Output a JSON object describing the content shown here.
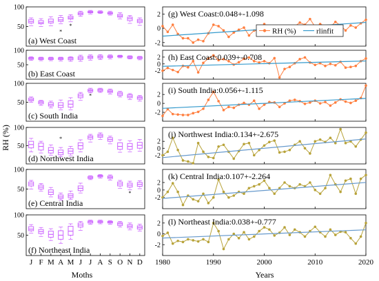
{
  "figure": {
    "left_ylabel": "RH (%)",
    "left_xlabel": "Moths",
    "right_xlabel": "Years",
    "months": [
      "J",
      "F",
      "M",
      "A",
      "M",
      "J",
      "J",
      "A",
      "S",
      "O",
      "N",
      "D"
    ],
    "year_ticks": [
      "1980",
      "1990",
      "2000",
      "2010",
      "2020"
    ],
    "box_ticks": [
      "50",
      "100"
    ],
    "ts_ticks": [
      "-2",
      "0",
      "2"
    ],
    "legend": {
      "obs": "RH (%)",
      "fit": "rlinfit"
    }
  },
  "chart_data": [
    {
      "type": "box",
      "label": "(a) West Coast",
      "ylim": [
        0,
        100
      ],
      "color": "#cc66ff",
      "boxes": [
        {
          "q1": 59,
          "med": 63,
          "q3": 68,
          "lo": 52,
          "hi": 72,
          "out": []
        },
        {
          "q1": 57,
          "med": 60,
          "q3": 65,
          "lo": 50,
          "hi": 70,
          "out": []
        },
        {
          "q1": 59,
          "med": 63,
          "q3": 69,
          "lo": 52,
          "hi": 75,
          "out": []
        },
        {
          "q1": 63,
          "med": 67,
          "q3": 73,
          "lo": 57,
          "hi": 78,
          "out": [
            38
          ]
        },
        {
          "q1": 69,
          "med": 72,
          "q3": 76,
          "lo": 62,
          "hi": 80,
          "out": [
            53
          ]
        },
        {
          "q1": 80,
          "med": 83,
          "q3": 86,
          "lo": 76,
          "hi": 89,
          "out": []
        },
        {
          "q1": 85,
          "med": 87,
          "q3": 89,
          "lo": 82,
          "hi": 91,
          "out": []
        },
        {
          "q1": 85,
          "med": 87,
          "q3": 88,
          "lo": 83,
          "hi": 90,
          "out": []
        },
        {
          "q1": 82,
          "med": 84,
          "q3": 86,
          "lo": 79,
          "hi": 89,
          "out": []
        },
        {
          "q1": 74,
          "med": 77,
          "q3": 81,
          "lo": 69,
          "hi": 85,
          "out": []
        },
        {
          "q1": 65,
          "med": 70,
          "q3": 74,
          "lo": 58,
          "hi": 78,
          "out": []
        },
        {
          "q1": 60,
          "med": 64,
          "q3": 68,
          "lo": 53,
          "hi": 72,
          "out": []
        }
      ]
    },
    {
      "type": "box",
      "label": "(b) East Coast",
      "ylim": [
        0,
        100
      ],
      "color": "#cc66ff",
      "boxes": [
        {
          "q1": 69,
          "med": 72,
          "q3": 75,
          "lo": 65,
          "hi": 78,
          "out": []
        },
        {
          "q1": 68,
          "med": 71,
          "q3": 74,
          "lo": 64,
          "hi": 76,
          "out": []
        },
        {
          "q1": 68,
          "med": 71,
          "q3": 74,
          "lo": 64,
          "hi": 76,
          "out": []
        },
        {
          "q1": 68,
          "med": 71,
          "q3": 74,
          "lo": 63,
          "hi": 76,
          "out": []
        },
        {
          "q1": 67,
          "med": 71,
          "q3": 75,
          "lo": 62,
          "hi": 78,
          "out": []
        },
        {
          "q1": 68,
          "med": 73,
          "q3": 78,
          "lo": 62,
          "hi": 83,
          "out": []
        },
        {
          "q1": 72,
          "med": 76,
          "q3": 80,
          "lo": 66,
          "hi": 84,
          "out": []
        },
        {
          "q1": 73,
          "med": 77,
          "q3": 81,
          "lo": 68,
          "hi": 85,
          "out": []
        },
        {
          "q1": 75,
          "med": 78,
          "q3": 81,
          "lo": 70,
          "hi": 84,
          "out": []
        },
        {
          "q1": 77,
          "med": 79,
          "q3": 81,
          "lo": 74,
          "hi": 83,
          "out": []
        },
        {
          "q1": 73,
          "med": 76,
          "q3": 79,
          "lo": 70,
          "hi": 81,
          "out": []
        },
        {
          "q1": 71,
          "med": 74,
          "q3": 77,
          "lo": 67,
          "hi": 79,
          "out": []
        }
      ]
    },
    {
      "type": "box",
      "label": "(c) South India",
      "ylim": [
        0,
        100
      ],
      "color": "#cc66ff",
      "boxes": [
        {
          "q1": 54,
          "med": 57,
          "q3": 61,
          "lo": 50,
          "hi": 64,
          "out": []
        },
        {
          "q1": 46,
          "med": 50,
          "q3": 53,
          "lo": 42,
          "hi": 55,
          "out": []
        },
        {
          "q1": 40,
          "med": 44,
          "q3": 49,
          "lo": 35,
          "hi": 53,
          "out": []
        },
        {
          "q1": 36,
          "med": 42,
          "q3": 49,
          "lo": 30,
          "hi": 56,
          "out": []
        },
        {
          "q1": 37,
          "med": 45,
          "q3": 54,
          "lo": 30,
          "hi": 62,
          "out": []
        },
        {
          "q1": 62,
          "med": 67,
          "q3": 72,
          "lo": 55,
          "hi": 76,
          "out": []
        },
        {
          "q1": 78,
          "med": 81,
          "q3": 84,
          "lo": 75,
          "hi": 87,
          "out": [
            68
          ]
        },
        {
          "q1": 79,
          "med": 82,
          "q3": 85,
          "lo": 76,
          "hi": 87,
          "out": []
        },
        {
          "q1": 76,
          "med": 79,
          "q3": 82,
          "lo": 72,
          "hi": 85,
          "out": []
        },
        {
          "q1": 68,
          "med": 72,
          "q3": 76,
          "lo": 64,
          "hi": 79,
          "out": []
        },
        {
          "q1": 62,
          "med": 66,
          "q3": 70,
          "lo": 57,
          "hi": 73,
          "out": []
        },
        {
          "q1": 58,
          "med": 62,
          "q3": 65,
          "lo": 53,
          "hi": 68,
          "out": []
        }
      ]
    },
    {
      "type": "box",
      "label": "(d) Northwest India",
      "ylim": [
        0,
        100
      ],
      "color": "#cc66ff",
      "boxes": [
        {
          "q1": 44,
          "med": 53,
          "q3": 62,
          "lo": 33,
          "hi": 70,
          "out": []
        },
        {
          "q1": 38,
          "med": 48,
          "q3": 57,
          "lo": 30,
          "hi": 62,
          "out": []
        },
        {
          "q1": 30,
          "med": 37,
          "q3": 45,
          "lo": 24,
          "hi": 52,
          "out": []
        },
        {
          "q1": 25,
          "med": 31,
          "q3": 38,
          "lo": 20,
          "hi": 45,
          "out": [
            70
          ]
        },
        {
          "q1": 28,
          "med": 35,
          "q3": 42,
          "lo": 22,
          "hi": 48,
          "out": []
        },
        {
          "q1": 41,
          "med": 50,
          "q3": 58,
          "lo": 33,
          "hi": 66,
          "out": []
        },
        {
          "q1": 68,
          "med": 73,
          "q3": 77,
          "lo": 60,
          "hi": 81,
          "out": []
        },
        {
          "q1": 73,
          "med": 77,
          "q3": 81,
          "lo": 67,
          "hi": 85,
          "out": []
        },
        {
          "q1": 62,
          "med": 67,
          "q3": 72,
          "lo": 55,
          "hi": 76,
          "out": []
        },
        {
          "q1": 40,
          "med": 48,
          "q3": 58,
          "lo": 32,
          "hi": 66,
          "out": []
        },
        {
          "q1": 40,
          "med": 48,
          "q3": 56,
          "lo": 33,
          "hi": 63,
          "out": []
        },
        {
          "q1": 43,
          "med": 51,
          "q3": 59,
          "lo": 35,
          "hi": 67,
          "out": []
        }
      ]
    },
    {
      "type": "box",
      "label": "(e) Central India",
      "ylim": [
        0,
        100
      ],
      "color": "#cc66ff",
      "boxes": [
        {
          "q1": 58,
          "med": 63,
          "q3": 68,
          "lo": 50,
          "hi": 72,
          "out": []
        },
        {
          "q1": 50,
          "med": 55,
          "q3": 60,
          "lo": 45,
          "hi": 64,
          "out": []
        },
        {
          "q1": 36,
          "med": 42,
          "q3": 48,
          "lo": 30,
          "hi": 54,
          "out": []
        },
        {
          "q1": 26,
          "med": 30,
          "q3": 35,
          "lo": 22,
          "hi": 40,
          "out": []
        },
        {
          "q1": 28,
          "med": 33,
          "q3": 38,
          "lo": 24,
          "hi": 45,
          "out": []
        },
        {
          "q1": 46,
          "med": 52,
          "q3": 58,
          "lo": 40,
          "hi": 65,
          "out": []
        },
        {
          "q1": 77,
          "med": 79,
          "q3": 82,
          "lo": 74,
          "hi": 84,
          "out": []
        },
        {
          "q1": 81,
          "med": 83,
          "q3": 85,
          "lo": 78,
          "hi": 87,
          "out": []
        },
        {
          "q1": 77,
          "med": 80,
          "q3": 83,
          "lo": 73,
          "hi": 86,
          "out": []
        },
        {
          "q1": 58,
          "med": 63,
          "q3": 68,
          "lo": 52,
          "hi": 72,
          "out": []
        },
        {
          "q1": 55,
          "med": 60,
          "q3": 65,
          "lo": 48,
          "hi": 70,
          "out": [
            40
          ]
        },
        {
          "q1": 57,
          "med": 62,
          "q3": 67,
          "lo": 51,
          "hi": 71,
          "out": []
        }
      ]
    },
    {
      "type": "box",
      "label": "(f) Northeast India",
      "ylim": [
        0,
        100
      ],
      "color": "#cc66ff",
      "boxes": [
        {
          "q1": 61,
          "med": 65,
          "q3": 71,
          "lo": 55,
          "hi": 76,
          "out": []
        },
        {
          "q1": 54,
          "med": 59,
          "q3": 64,
          "lo": 47,
          "hi": 69,
          "out": []
        },
        {
          "q1": 45,
          "med": 52,
          "q3": 60,
          "lo": 37,
          "hi": 66,
          "out": []
        },
        {
          "q1": 40,
          "med": 50,
          "q3": 61,
          "lo": 30,
          "hi": 70,
          "out": []
        },
        {
          "q1": 50,
          "med": 60,
          "q3": 72,
          "lo": 40,
          "hi": 78,
          "out": []
        },
        {
          "q1": 70,
          "med": 75,
          "q3": 80,
          "lo": 62,
          "hi": 84,
          "out": []
        },
        {
          "q1": 80,
          "med": 83,
          "q3": 85,
          "lo": 77,
          "hi": 87,
          "out": []
        },
        {
          "q1": 81,
          "med": 83,
          "q3": 85,
          "lo": 78,
          "hi": 87,
          "out": []
        },
        {
          "q1": 80,
          "med": 82,
          "q3": 84,
          "lo": 77,
          "hi": 86,
          "out": []
        },
        {
          "q1": 74,
          "med": 78,
          "q3": 81,
          "lo": 70,
          "hi": 84,
          "out": []
        },
        {
          "q1": 68,
          "med": 72,
          "q3": 76,
          "lo": 63,
          "hi": 80,
          "out": []
        },
        {
          "q1": 65,
          "med": 69,
          "q3": 73,
          "lo": 60,
          "hi": 77,
          "out": []
        }
      ]
    },
    {
      "type": "line",
      "label": "(g) West Coast:0.048+-1.098",
      "legend": true,
      "x_start": 1980,
      "xlim": [
        1980,
        2020
      ],
      "ylim": [
        -2.5,
        3
      ],
      "color": "#ff7f3f",
      "fit_color": "#3399cc",
      "values": [
        0.3,
        -0.5,
        0.5,
        -0.8,
        -1.4,
        -1.4,
        -2.0,
        -1.6,
        -1.8,
        -0.7,
        0.5,
        0.3,
        -0.3,
        -1.2,
        -0.6,
        -0.2,
        0.1,
        -1.0,
        -0.3,
        -0.4,
        0.6,
        0.0,
        -0.6,
        0.0,
        -0.8,
        0.1,
        0.3,
        0.8,
        0.5,
        1.3,
        0.2,
        0.6,
        0.3,
        0.2,
        0.9,
        0.4,
        -0.3,
        0.4,
        0.1,
        0.7,
        1.2
      ],
      "fit": [
        -1.098,
        0.822
      ]
    },
    {
      "type": "line",
      "label": "(h) East Coast:0.039+-0.708",
      "legend": false,
      "x_start": 1980,
      "xlim": [
        1980,
        2020
      ],
      "ylim": [
        -4.5,
        4
      ],
      "color": "#ff7f3f",
      "fit_color": "#3399cc",
      "values": [
        -2.0,
        -1.2,
        -1.8,
        -2.4,
        -0.6,
        -1.0,
        0.8,
        -2.5,
        0.3,
        1.6,
        2.5,
        1.1,
        1.4,
        0.8,
        -0.2,
        0.5,
        1.5,
        1.9,
        0.8,
        0.4,
        0.8,
        0.2,
        1.7,
        -4.0,
        -1.5,
        -0.9,
        0.2,
        1.4,
        1.9,
        0.4,
        -0.3,
        0.2,
        -0.6,
        0.0,
        -0.4,
        0.6,
        -1.1,
        -0.9,
        -0.6,
        0.8,
        1.6
      ],
      "fit": [
        -0.708,
        0.852
      ]
    },
    {
      "type": "line",
      "label": "(i) South India:0.056+-1.115",
      "legend": false,
      "x_start": 1980,
      "xlim": [
        1980,
        2020
      ],
      "ylim": [
        -4,
        4.5
      ],
      "color": "#ff7f3f",
      "fit_color": "#3399cc",
      "values": [
        -2.8,
        -1.3,
        -2.4,
        -2.5,
        -2.6,
        -2.6,
        -2.2,
        -1.9,
        -1.2,
        0.8,
        2.6,
        0.5,
        -1.5,
        -0.8,
        -1.0,
        -0.3,
        0.1,
        -0.3,
        0.6,
        -1.2,
        -0.3,
        0.3,
        0.2,
        -0.8,
        0.0,
        0.6,
        0.8,
        0.5,
        -0.1,
        0.2,
        0.6,
        0.0,
        0.3,
        -0.5,
        0.2,
        0.9,
        0.4,
        0.1,
        0.6,
        1.2,
        4.0
      ],
      "fit": [
        -1.115,
        1.125
      ]
    },
    {
      "type": "line",
      "label": "(j) Northwest India:0.134+-2.675",
      "legend": false,
      "x_start": 1980,
      "xlim": [
        1980,
        2020
      ],
      "ylim": [
        -4.5,
        6
      ],
      "color": "#b8a33a",
      "fit_color": "#6699cc",
      "values": [
        -2.0,
        -1.0,
        3.0,
        -0.5,
        -3.5,
        -3.8,
        -4.3,
        1.5,
        -1.0,
        -2.5,
        -2.8,
        0.5,
        1.0,
        -1.0,
        -3.0,
        -0.8,
        1.2,
        1.5,
        -2.0,
        -0.5,
        0.8,
        1.8,
        2.2,
        -1.2,
        -1.0,
        -0.5,
        1.0,
        2.0,
        0.0,
        -1.5,
        2.0,
        2.5,
        1.8,
        3.0,
        1.5,
        5.5,
        1.5,
        2.0,
        0.5,
        2.5,
        4.5
      ],
      "fit": [
        -2.675,
        2.685
      ]
    },
    {
      "type": "line",
      "label": "(k) Central India:0.107+-2.264",
      "legend": false,
      "x_start": 1980,
      "xlim": [
        1980,
        2020
      ],
      "ylim": [
        -5,
        5.5
      ],
      "color": "#b8a33a",
      "fit_color": "#6699cc",
      "values": [
        -2.0,
        -0.5,
        1.8,
        -0.5,
        -4.0,
        -1.5,
        -2.5,
        -3.0,
        -1.0,
        -3.5,
        -2.0,
        2.8,
        -0.5,
        -2.0,
        -1.5,
        -0.5,
        -1.0,
        0.5,
        1.0,
        1.5,
        2.5,
        0.5,
        -1.0,
        0.5,
        2.0,
        1.0,
        0.5,
        1.5,
        1.0,
        2.0,
        0.0,
        -1.0,
        0.5,
        4.0,
        1.5,
        -0.5,
        2.5,
        3.0,
        -1.0,
        3.0,
        4.0
      ],
      "fit": [
        -2.264,
        2.016
      ]
    },
    {
      "type": "line",
      "label": "(l) Northeast India:0.038+-0.777",
      "legend": false,
      "x_start": 1980,
      "xlim": [
        1980,
        2020
      ],
      "ylim": [
        -4,
        3.5
      ],
      "color": "#b8a33a",
      "fit_color": "#6699cc",
      "values": [
        -0.4,
        0.2,
        -1.8,
        -1.3,
        -1.5,
        -1.0,
        -1.2,
        -1.4,
        -1.0,
        -1.5,
        2.0,
        0.5,
        -2.8,
        -1.0,
        0.0,
        -0.8,
        0.3,
        -1.0,
        -0.5,
        0.5,
        1.2,
        0.8,
        -0.3,
        0.2,
        1.2,
        -0.2,
        0.8,
        0.3,
        -0.5,
        0.5,
        1.3,
        0.3,
        -0.5,
        0.8,
        -0.2,
        0.4,
        0.3,
        -0.8,
        -1.8,
        -0.5,
        2.0
      ],
      "fit": [
        -0.777,
        0.743
      ]
    }
  ]
}
